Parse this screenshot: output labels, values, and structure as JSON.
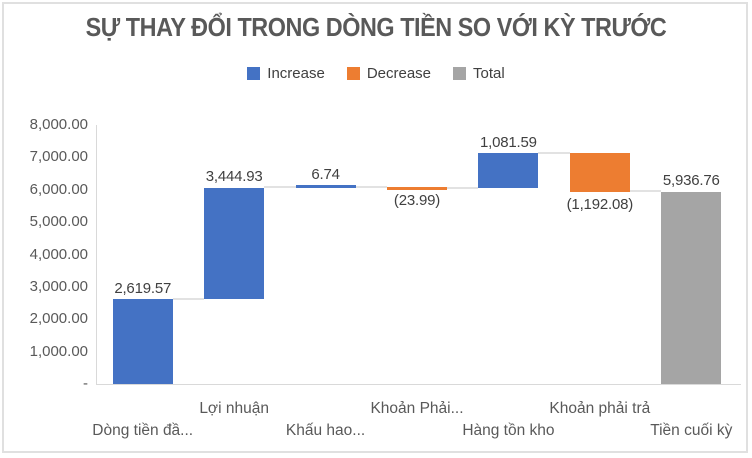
{
  "chart": {
    "title": "SỰ THAY ĐỔI TRONG DÒNG TIỀN SO VỚI KỲ TRƯỚC",
    "legend": [
      {
        "name": "increase",
        "label": "Increase",
        "color": "#4472C4"
      },
      {
        "name": "decrease",
        "label": "Decrease",
        "color": "#ED7D31"
      },
      {
        "name": "total",
        "label": "Total",
        "color": "#A5A5A5"
      }
    ]
  },
  "chart_data": {
    "type": "bar",
    "subtype": "waterfall",
    "title": "SỰ THAY ĐỔI TRONG DÒNG TIỀN SO VỚI KỲ TRƯỚC",
    "legend_entries": [
      "Increase",
      "Decrease",
      "Total"
    ],
    "legend_position": "top",
    "grid": false,
    "categories": [
      "Dòng tiền đầ...",
      "Lợi nhuận",
      "Khấu hao...",
      "Khoản Phải...",
      "Hàng tồn kho",
      "Khoản phải trả",
      "Tiền cuối kỳ"
    ],
    "bars": [
      {
        "category": "Dòng tiền đầ...",
        "series": "increase",
        "value": 2619.57,
        "label": "2,619.57",
        "base": 0,
        "top": 2619.57,
        "label_side": "above"
      },
      {
        "category": "Lợi nhuận",
        "series": "increase",
        "value": 3444.93,
        "label": "3,444.93",
        "base": 2619.57,
        "top": 6064.5,
        "label_side": "above"
      },
      {
        "category": "Khấu hao...",
        "series": "increase",
        "value": 6.74,
        "label": "6.74",
        "base": 6064.5,
        "top": 6071.24,
        "label_side": "above"
      },
      {
        "category": "Khoản Phải...",
        "series": "decrease",
        "value": -23.99,
        "label": "(23.99)",
        "base": 6047.25,
        "top": 6071.24,
        "label_side": "below"
      },
      {
        "category": "Hàng tồn kho",
        "series": "increase",
        "value": 1081.59,
        "label": "1,081.59",
        "base": 6047.25,
        "top": 7128.84,
        "label_side": "above"
      },
      {
        "category": "Khoản phải trả",
        "series": "decrease",
        "value": -1192.08,
        "label": "(1,192.08)",
        "base": 5936.76,
        "top": 7128.84,
        "label_side": "below"
      },
      {
        "category": "Tiền cuối kỳ",
        "series": "total",
        "value": 5936.76,
        "label": "5,936.76",
        "base": 0,
        "top": 5936.76,
        "label_side": "above"
      }
    ],
    "connector_levels": [
      2619.57,
      6064.5,
      6071.24,
      6047.25,
      7128.84,
      5936.76
    ],
    "y_axis": {
      "min": 0,
      "max": 8000,
      "step": 1000,
      "tick_labels_top_to_bottom": [
        "8,000.00",
        "7,000.00",
        "6,000.00",
        "5,000.00",
        "4,000.00",
        "3,000.00",
        "2,000.00",
        "1,000.00",
        "-"
      ]
    },
    "series_colors": {
      "increase": "#4472C4",
      "decrease": "#ED7D31",
      "total": "#A5A5A5"
    }
  }
}
